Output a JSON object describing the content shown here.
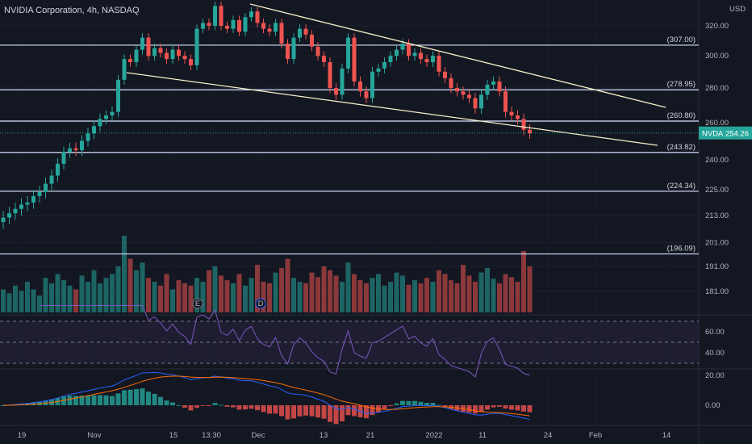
{
  "header": {
    "title": "NVIDIA Corporation, 4h, NASDAQ"
  },
  "colors": {
    "up": "#26a69a",
    "down": "#ef5350",
    "bg": "#131722",
    "level": "#b2c8ff",
    "trend": "#f5f0c8",
    "rsi": "#7e57c2",
    "macd": "#2962ff",
    "signal": "#ff6d00"
  },
  "chart_data": {
    "type": "candlestick",
    "symbol": "NVDA",
    "currency": "USD",
    "last_price": "254.26",
    "price_ticks": [
      "320.00",
      "300.00",
      "280.00",
      "260.00",
      "240.00",
      "225.00",
      "213.00",
      "201.00",
      "191.00",
      "181.00"
    ],
    "price_tick_values": [
      320,
      300,
      280,
      260,
      240,
      225,
      213,
      201,
      191,
      181
    ],
    "time_ticks": [
      "19",
      "Nov",
      "15",
      "13:30",
      "Dec",
      "13",
      "21",
      "2022",
      "11",
      "24",
      "Feb",
      "14"
    ],
    "levels": [
      {
        "value": 307.0,
        "label": "(307.00)"
      },
      {
        "value": 278.95,
        "label": "(278.95)"
      },
      {
        "value": 260.8,
        "label": "(260.80)"
      },
      {
        "value": 243.82,
        "label": "(243.82)"
      },
      {
        "value": 224.34,
        "label": "(224.34)"
      },
      {
        "value": 196.09,
        "label": "(196.09)"
      }
    ],
    "closes": [
      212,
      214,
      216,
      218,
      219,
      222,
      224,
      228,
      232,
      238,
      244,
      246,
      245,
      250,
      254,
      258,
      262,
      264,
      266,
      285,
      298,
      296,
      304,
      312,
      300,
      305,
      302,
      298,
      304,
      300,
      298,
      294,
      318,
      322,
      320,
      334,
      320,
      318,
      324,
      316,
      326,
      330,
      322,
      318,
      316,
      322,
      308,
      298,
      312,
      318,
      314,
      306,
      300,
      296,
      280,
      276,
      292,
      312,
      284,
      278,
      274,
      290,
      292,
      296,
      300,
      304,
      308,
      300,
      302,
      298,
      296,
      300,
      290,
      286,
      280,
      278,
      276,
      274,
      268,
      276,
      282,
      284,
      278,
      266,
      264,
      262,
      256,
      254
    ],
    "volumes": [
      30,
      25,
      35,
      28,
      40,
      30,
      22,
      45,
      38,
      50,
      42,
      35,
      30,
      48,
      40,
      55,
      38,
      45,
      50,
      60,
      100,
      70,
      55,
      65,
      45,
      40,
      35,
      50,
      30,
      42,
      38,
      35,
      45,
      40,
      55,
      60,
      48,
      42,
      38,
      50,
      35,
      45,
      62,
      40,
      38,
      52,
      58,
      70,
      45,
      40,
      38,
      52,
      46,
      60,
      55,
      48,
      40,
      65,
      50,
      42,
      38,
      45,
      50,
      35,
      40,
      52,
      48,
      36,
      42,
      38,
      45,
      40,
      55,
      50,
      42,
      38,
      62,
      48,
      40,
      52,
      58,
      44,
      38,
      50,
      46,
      40,
      80,
      60
    ],
    "rsi": {
      "upper": 70,
      "lower": 30,
      "ticks": [
        "60.00",
        "40.00"
      ],
      "tick_values": [
        60,
        40
      ]
    },
    "macd": {
      "ticks": [
        "20.00",
        "0.00"
      ],
      "tick_values": [
        20,
        0
      ]
    },
    "event_markers": [
      {
        "label": "E"
      },
      {
        "label": "D"
      }
    ]
  }
}
